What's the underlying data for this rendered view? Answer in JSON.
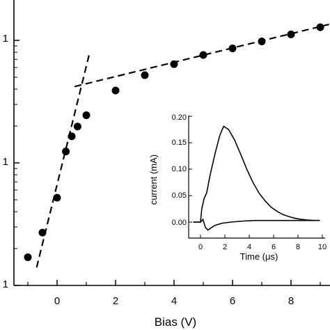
{
  "chart_data": [
    {
      "type": "scatter",
      "xlabel": "Bias (V)",
      "ylabel": "",
      "y_scale": "log",
      "xlim": [
        -1.5,
        9.3
      ],
      "ylim": [
        0.001,
        0.125
      ],
      "x_tick_labels": [
        "0",
        "2",
        "4",
        "6",
        "8"
      ],
      "x_ticks": [
        0,
        2,
        4,
        6,
        8
      ],
      "y_tick_labels": [
        "1",
        "1",
        "1"
      ],
      "y_ticks": [
        0.1,
        0.01,
        0.001
      ],
      "series": [
        {
          "x": [
            -1.0,
            -0.5,
            0.0,
            0.3,
            0.5,
            0.7,
            1.0,
            2.0,
            3.0,
            4.0,
            5.0,
            6.0,
            7.0,
            8.0,
            9.0
          ],
          "y": [
            0.0017,
            0.0027,
            0.0052,
            0.0124,
            0.0165,
            0.0198,
            0.0245,
            0.039,
            0.052,
            0.064,
            0.076,
            0.086,
            0.098,
            0.112,
            0.128
          ]
        }
      ],
      "fit_lines": [
        {
          "x": [
            -0.7,
            1.1
          ],
          "y": [
            0.0014,
            0.077
          ],
          "style": "dashed"
        },
        {
          "x": [
            0.6,
            9.3
          ],
          "y": [
            0.042,
            0.135
          ],
          "style": "dashed"
        }
      ]
    },
    {
      "type": "line",
      "inset": true,
      "xlabel": "Time (μs)",
      "ylabel": "current (mA)",
      "xlim": [
        -1,
        10
      ],
      "ylim": [
        -0.03,
        0.2
      ],
      "x_tick_labels": [
        "0",
        "2",
        "4",
        "6",
        "8",
        "10"
      ],
      "x_ticks": [
        0,
        2,
        4,
        6,
        8,
        10
      ],
      "y_tick_labels": [
        "0.00",
        "0.05",
        "0.10",
        "0.15",
        "0.20"
      ],
      "y_ticks": [
        0,
        0.05,
        0.1,
        0.15,
        0.2
      ],
      "series": [
        {
          "x": [
            -0.6,
            0.0,
            0.1,
            0.3,
            0.5,
            0.8,
            1.2,
            1.6,
            1.9,
            2.3,
            2.8,
            3.3,
            3.8,
            4.3,
            4.8,
            5.3,
            5.8,
            6.3,
            6.8,
            7.3,
            7.8,
            8.3,
            8.8,
            9.3,
            9.8
          ],
          "y": [
            0.0,
            0.0,
            0.025,
            0.045,
            0.055,
            0.09,
            0.13,
            0.165,
            0.181,
            0.175,
            0.155,
            0.128,
            0.1,
            0.075,
            0.055,
            0.04,
            0.028,
            0.02,
            0.014,
            0.01,
            0.007,
            0.005,
            0.004,
            0.003,
            0.003
          ]
        },
        {
          "x": [
            -0.6,
            0.0,
            0.2,
            0.4,
            0.6,
            0.8,
            1.2,
            1.8,
            2.5,
            3.5,
            4.5,
            6.0,
            8.0,
            9.8
          ],
          "y": [
            0.0,
            0.0,
            0.005,
            -0.01,
            -0.015,
            -0.012,
            -0.006,
            -0.002,
            0.0,
            0.002,
            0.003,
            0.003,
            0.003,
            0.003
          ]
        }
      ]
    }
  ]
}
